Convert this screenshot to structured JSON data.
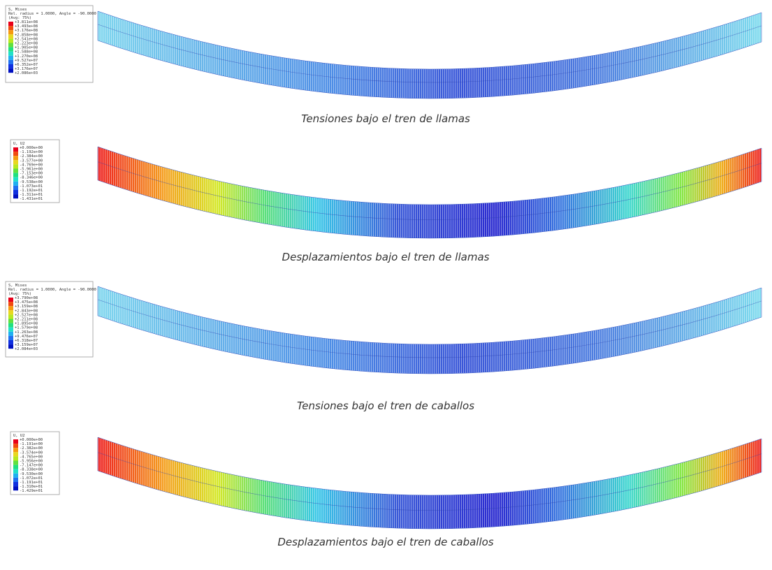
{
  "panels": [
    {
      "legend": {
        "title": "S, Mises",
        "subtitle": "Rel. radius = 1.0000, Angle = -90.0000",
        "avg": "(Avg: 75%)",
        "values": [
          "+3.811e+08",
          "+3.493e+08",
          "+3.176e+08",
          "+2.858e+08",
          "+2.541e+08",
          "+2.223e+08",
          "+1.905e+08",
          "+1.588e+08",
          "+1.270e+08",
          "+9.527e+07",
          "+6.352e+07",
          "+3.176e+07",
          "+2.086e+03"
        ]
      },
      "caption": "Tensiones bajo el tren de llamas"
    },
    {
      "legend": {
        "title": "U, U2",
        "values": [
          "+0.000e+00",
          "-1.192e+00",
          "-2.384e+00",
          "-3.577e+00",
          "-4.769e+00",
          "-5.961e+00",
          "-7.153e+00",
          "-8.346e+00",
          "-9.538e+00",
          "-1.073e+01",
          "-1.192e+01",
          "-1.311e+01",
          "-1.431e+01"
        ]
      },
      "caption": "Desplazamientos bajo el tren de llamas"
    },
    {
      "legend": {
        "title": "S, Mises",
        "subtitle": "Rel. radius = 1.0000, Angle = -90.0000",
        "avg": "(Avg: 75%)",
        "values": [
          "+3.790e+08",
          "+3.475e+08",
          "+3.159e+08",
          "+2.843e+08",
          "+2.527e+08",
          "+2.211e+08",
          "+1.895e+08",
          "+1.579e+08",
          "+1.263e+08",
          "+9.476e+07",
          "+6.318e+07",
          "+3.159e+07",
          "+2.084e+03"
        ]
      },
      "caption": "Tensiones bajo el tren de caballos"
    },
    {
      "legend": {
        "title": "U, U2",
        "values": [
          "+0.000e+00",
          "-1.191e+00",
          "-2.382e+00",
          "-3.574e+00",
          "-4.765e+00",
          "-5.956e+00",
          "-7.147e+00",
          "-8.338e+00",
          "-9.530e+00",
          "-1.072e+01",
          "-1.191e+01",
          "-1.310e+01",
          "-1.429e+01"
        ]
      },
      "caption": "Desplazamientos bajo el tren de caballos"
    }
  ]
}
